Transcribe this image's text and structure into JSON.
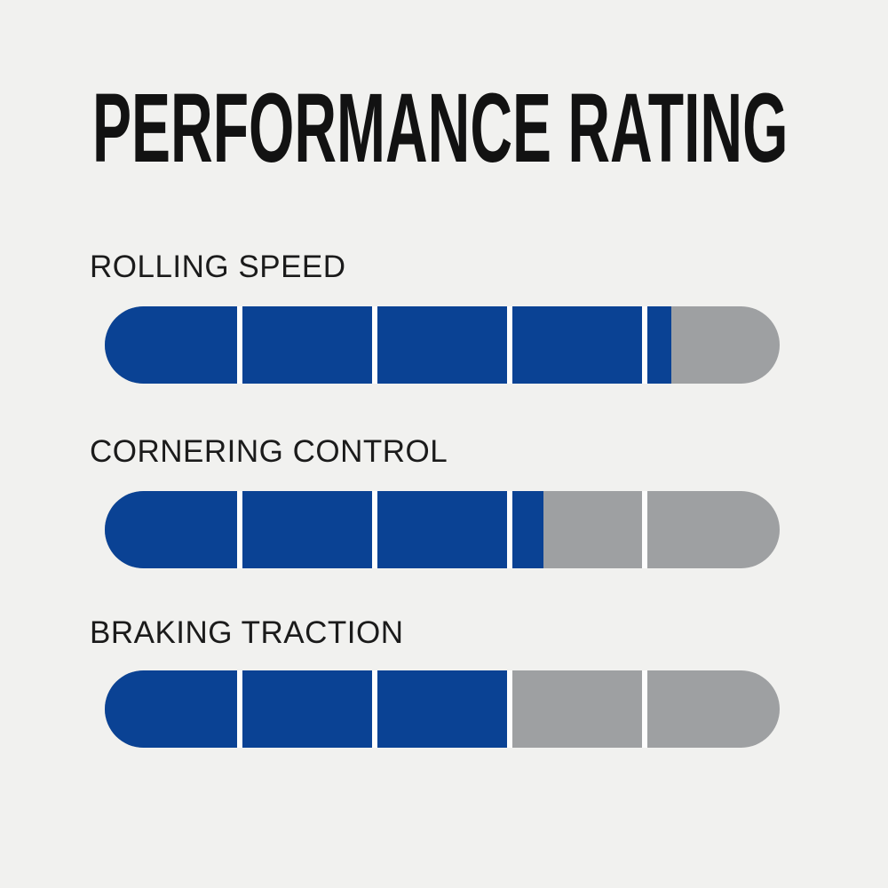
{
  "page": {
    "background_color": "#F1F1EF"
  },
  "title": "PERFORMANCE RATING",
  "colors": {
    "fill_blue": "#0A4294",
    "track_gray": "#9EA0A2",
    "divider_white": "#FDFDFD",
    "text_black": "#121212"
  },
  "chart_data": {
    "type": "bar",
    "orientation": "horizontal",
    "title": "PERFORMANCE RATING",
    "categories": [
      "ROLLING SPEED",
      "CORNERING CONTROL",
      "BRAKING TRACTION"
    ],
    "values": [
      4.2,
      3.25,
      3.0
    ],
    "max": 5,
    "segments_per_bar": 5,
    "fill_percent": [
      84,
      65,
      60
    ],
    "legend": "none",
    "grid": "off",
    "fill_color": "#0A4294",
    "track_color": "#9EA0A2"
  },
  "bars": [
    {
      "label": "ROLLING SPEED",
      "value": 4.2,
      "max": 5,
      "percent": 84
    },
    {
      "label": "CORNERING CONTROL",
      "value": 3.25,
      "max": 5,
      "percent": 65
    },
    {
      "label": "BRAKING TRACTION",
      "value": 3.0,
      "max": 5,
      "percent": 60
    }
  ]
}
